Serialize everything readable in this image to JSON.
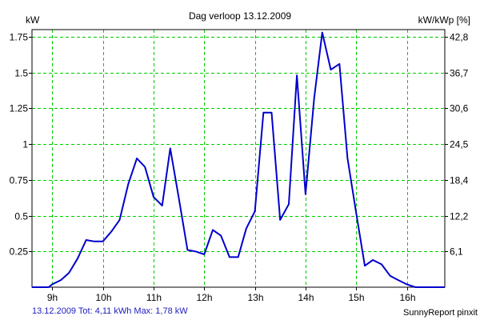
{
  "chart_data": {
    "type": "line",
    "title": "Dag  verloop 13.12.2009",
    "y_left_label": "kW",
    "y_right_label": "kW/kWp [%]",
    "x_ticks": [
      {
        "value": 9,
        "label": "9h"
      },
      {
        "value": 10,
        "label": "10h"
      },
      {
        "value": 11,
        "label": "11h"
      },
      {
        "value": 12,
        "label": "12h"
      },
      {
        "value": 13,
        "label": "13h"
      },
      {
        "value": 14,
        "label": "14h"
      },
      {
        "value": 15,
        "label": "15h"
      },
      {
        "value": 16,
        "label": "16h"
      }
    ],
    "y_left_ticks": [
      {
        "value": 0.25,
        "label": "0.25"
      },
      {
        "value": 0.5,
        "label": "0.5"
      },
      {
        "value": 0.75,
        "label": "0.75"
      },
      {
        "value": 1.0,
        "label": "1"
      },
      {
        "value": 1.25,
        "label": "1.25"
      },
      {
        "value": 1.5,
        "label": "1.5"
      },
      {
        "value": 1.75,
        "label": "1.75"
      }
    ],
    "y_right_ticks": [
      {
        "value": 0.25,
        "label": "6,1"
      },
      {
        "value": 0.5,
        "label": "12,2"
      },
      {
        "value": 0.75,
        "label": "18,4"
      },
      {
        "value": 1.0,
        "label": "24,5"
      },
      {
        "value": 1.25,
        "label": "30,6"
      },
      {
        "value": 1.5,
        "label": "36,7"
      },
      {
        "value": 1.75,
        "label": "42,8"
      }
    ],
    "xlim": [
      8.6,
      16.75
    ],
    "ylim": [
      0,
      1.8
    ],
    "grid": true,
    "line_color": "#0000cc",
    "grid_color": "#00cc00",
    "series": [
      {
        "x": [
          8.6,
          8.93,
          9.0,
          9.17,
          9.33,
          9.5,
          9.67,
          9.83,
          10.0,
          10.17,
          10.33,
          10.5,
          10.67,
          10.83,
          11.0,
          11.17,
          11.33,
          11.5,
          11.67,
          11.83,
          12.0,
          12.17,
          12.33,
          12.5,
          12.67,
          12.83,
          13.0,
          13.17,
          13.33,
          13.5,
          13.67,
          13.83,
          14.0,
          14.17,
          14.33,
          14.5,
          14.67,
          14.83,
          15.0,
          15.17,
          15.33,
          15.5,
          15.67,
          15.83,
          16.0,
          16.17,
          16.33,
          16.5,
          16.75
        ],
        "y": [
          0.0,
          0.0,
          0.02,
          0.05,
          0.1,
          0.2,
          0.33,
          0.32,
          0.32,
          0.39,
          0.47,
          0.72,
          0.9,
          0.84,
          0.63,
          0.57,
          0.97,
          0.62,
          0.26,
          0.25,
          0.23,
          0.4,
          0.36,
          0.21,
          0.21,
          0.41,
          0.53,
          1.22,
          1.22,
          0.47,
          0.58,
          1.48,
          0.65,
          1.32,
          1.78,
          1.52,
          1.56,
          0.9,
          0.52,
          0.15,
          0.19,
          0.16,
          0.08,
          0.05,
          0.02,
          0.0,
          0.0,
          0.0,
          0.0
        ]
      }
    ]
  },
  "footer": {
    "left_text": "13.12.2009 Tot: 4,11 kWh Max: 1,78 kW",
    "right_text": "SunnyReport pinxit"
  }
}
